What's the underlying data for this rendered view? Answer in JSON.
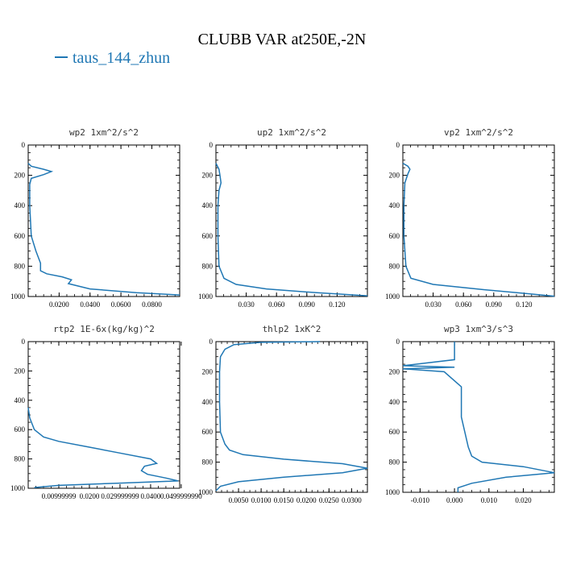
{
  "title": "CLUBB VAR at250E,-2N",
  "legend": {
    "label": "taus_144_zhun",
    "color": "#1f77b4"
  },
  "chart_data": [
    {
      "type": "line",
      "title": "wp2  1xm^2/s^2",
      "xlim": [
        0,
        0.098
      ],
      "ylim": [
        1000,
        0
      ],
      "y_inverted": true,
      "xticks": [
        0.02,
        0.04,
        0.06,
        0.08
      ],
      "xticklabels": [
        "0.0200",
        "0.0400",
        "0.0600",
        "0.0800"
      ],
      "yticks": [
        0,
        200,
        400,
        600,
        800,
        1000
      ],
      "series": [
        {
          "x": [
            0.0,
            0.002,
            0.01,
            0.015,
            0.01,
            0.002,
            0.001,
            0.001,
            0.002,
            0.005,
            0.008,
            0.008,
            0.012,
            0.022,
            0.028,
            0.026,
            0.04,
            0.07,
            0.098
          ],
          "y": [
            120,
            140,
            160,
            175,
            195,
            220,
            260,
            400,
            600,
            700,
            780,
            830,
            850,
            870,
            890,
            915,
            950,
            975,
            990
          ]
        }
      ]
    },
    {
      "type": "line",
      "title": "up2  1xm^2/s^2",
      "xlim": [
        0,
        0.15
      ],
      "ylim": [
        1000,
        0
      ],
      "y_inverted": true,
      "xticks": [
        0.03,
        0.06,
        0.09,
        0.12
      ],
      "xticklabels": [
        "0.030",
        "0.060",
        "0.090",
        "0.120"
      ],
      "yticks": [
        0,
        200,
        400,
        600,
        800,
        1000
      ],
      "series": [
        {
          "x": [
            0.0,
            0.003,
            0.004,
            0.005,
            0.003,
            0.002,
            0.002,
            0.003,
            0.008,
            0.02,
            0.05,
            0.1,
            0.15
          ],
          "y": [
            120,
            160,
            200,
            250,
            300,
            400,
            600,
            800,
            880,
            920,
            950,
            975,
            995
          ]
        }
      ]
    },
    {
      "type": "line",
      "title": "vp2  1xm^2/s^2",
      "xlim": [
        0,
        0.15
      ],
      "ylim": [
        1000,
        0
      ],
      "y_inverted": true,
      "xticks": [
        0.03,
        0.06,
        0.09,
        0.12
      ],
      "xticklabels": [
        "0.030",
        "0.060",
        "0.090",
        "0.120"
      ],
      "yticks": [
        0,
        200,
        400,
        600,
        800,
        1000
      ],
      "series": [
        {
          "x": [
            0.0,
            0.005,
            0.007,
            0.005,
            0.002,
            0.001,
            0.001,
            0.003,
            0.008,
            0.03,
            0.08,
            0.13,
            0.15
          ],
          "y": [
            120,
            140,
            160,
            190,
            250,
            400,
            600,
            800,
            880,
            920,
            955,
            985,
            998
          ]
        }
      ]
    },
    {
      "type": "line",
      "title": "rtp2  1E-6x(kg/kg)^2",
      "xlim": [
        0,
        0.0495
      ],
      "ylim": [
        1000,
        0
      ],
      "y_inverted": true,
      "xticks": [
        0.00999999,
        0.01999999,
        0.02999999,
        0.03999999,
        0.04999999
      ],
      "xticklabels": [
        "0.00999999",
        "0.0200",
        "0.029999999",
        "0.0400",
        "0.0499999990"
      ],
      "yticks": [
        0,
        200,
        400,
        600,
        800,
        1000
      ],
      "series": [
        {
          "x": [
            0.0,
            0.0005,
            0.002,
            0.005,
            0.01,
            0.02,
            0.03,
            0.04,
            0.042,
            0.038,
            0.037,
            0.039,
            0.045,
            0.049,
            0.03,
            0.01,
            0.002
          ],
          "y": [
            450,
            520,
            600,
            650,
            680,
            720,
            760,
            800,
            830,
            850,
            880,
            905,
            930,
            950,
            965,
            980,
            995
          ]
        }
      ]
    },
    {
      "type": "line",
      "title": "thlp2  1xK^2",
      "xlim": [
        0,
        0.0335
      ],
      "ylim": [
        1000,
        0
      ],
      "y_inverted": true,
      "xticks": [
        0.005,
        0.01,
        0.015,
        0.02,
        0.025,
        0.03
      ],
      "xticklabels": [
        "0.0050",
        "0.0100",
        "0.0150",
        "0.0200",
        "0.0250",
        "0.0300"
      ],
      "yticks": [
        0,
        200,
        400,
        600,
        800,
        1000
      ],
      "series": [
        {
          "x": [
            0.023,
            0.01,
            0.004,
            0.002,
            0.001,
            0.0008,
            0.0008,
            0.001,
            0.002,
            0.003,
            0.006,
            0.015,
            0.028,
            0.0335,
            0.028,
            0.015,
            0.005,
            0.001,
            0.0
          ],
          "y": [
            0,
            5,
            20,
            50,
            100,
            200,
            400,
            600,
            680,
            720,
            750,
            780,
            810,
            840,
            870,
            900,
            930,
            960,
            990
          ]
        }
      ]
    },
    {
      "type": "line",
      "title": "wp3  1xm^3/s^3",
      "xlim": [
        -0.015,
        0.029
      ],
      "ylim": [
        1000,
        0
      ],
      "y_inverted": true,
      "xticks": [
        -0.01,
        0.0,
        0.01,
        0.02
      ],
      "xticklabels": [
        "-0.010",
        "0.000",
        "0.010",
        "0.020"
      ],
      "yticks": [
        0,
        200,
        400,
        600,
        800,
        1000
      ],
      "series": [
        {
          "x": [
            0.0,
            0.0,
            -0.015,
            0.0,
            -0.015,
            -0.003,
            0.002,
            0.002,
            0.002,
            0.003,
            0.004,
            0.005,
            0.008,
            0.02,
            0.029,
            0.015,
            0.005,
            0.001,
            0.001
          ],
          "y": [
            0,
            120,
            160,
            170,
            180,
            200,
            300,
            400,
            500,
            600,
            700,
            760,
            800,
            830,
            870,
            900,
            940,
            970,
            1000
          ]
        }
      ]
    }
  ]
}
